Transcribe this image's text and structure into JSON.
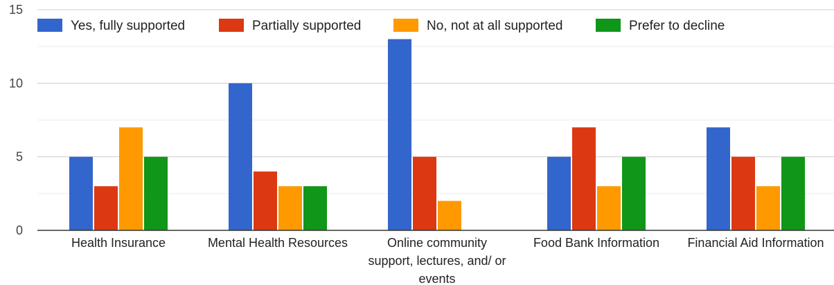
{
  "chart_data": {
    "type": "bar",
    "categories": [
      "Health Insurance",
      "Mental Health Resources",
      "Online community support, lectures, and/ or events",
      "Food Bank Information",
      "Financial Aid Information"
    ],
    "series": [
      {
        "name": "Yes, fully supported",
        "color": "#3366cc",
        "values": [
          5,
          10,
          13,
          5,
          7
        ]
      },
      {
        "name": "Partially supported",
        "color": "#dc3912",
        "values": [
          3,
          4,
          5,
          7,
          5
        ]
      },
      {
        "name": "No, not at all supported",
        "color": "#ff9900",
        "values": [
          7,
          3,
          2,
          3,
          3
        ]
      },
      {
        "name": "Prefer to decline",
        "color": "#109618",
        "values": [
          5,
          3,
          0,
          5,
          5
        ]
      }
    ],
    "ylim": [
      0,
      15
    ],
    "yticks": [
      0,
      5,
      10,
      15
    ],
    "grid": true,
    "legend_position": "top"
  }
}
